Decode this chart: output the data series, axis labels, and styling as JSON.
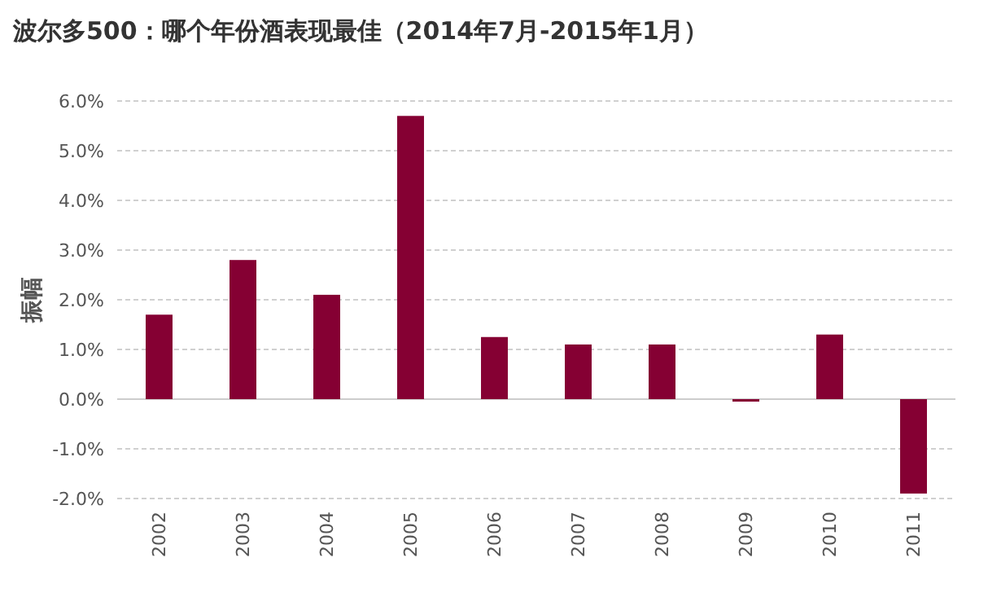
{
  "chart_data": {
    "type": "bar",
    "title": "波尔多500：哪个年份酒表现最佳（2014年7月-2015年1月）",
    "ylabel": "振幅",
    "categories": [
      "2002",
      "2003",
      "2004",
      "2005",
      "2006",
      "2007",
      "2008",
      "2009",
      "2010",
      "2011"
    ],
    "values": [
      1.7,
      2.8,
      2.1,
      5.7,
      1.25,
      1.1,
      1.1,
      -0.05,
      1.3,
      -1.9
    ],
    "color": "#850033",
    "ylim": [
      -2,
      6
    ],
    "yticks": [
      {
        "value": -2,
        "label": "-2.0%"
      },
      {
        "value": -1,
        "label": "-1.0%"
      },
      {
        "value": 0,
        "label": "0.0%"
      },
      {
        "value": 1,
        "label": "1.0%"
      },
      {
        "value": 2,
        "label": "2.0%"
      },
      {
        "value": 3,
        "label": "3.0%"
      },
      {
        "value": 4,
        "label": "4.0%"
      },
      {
        "value": 5,
        "label": "5.0%"
      },
      {
        "value": 6,
        "label": "6.0%"
      }
    ],
    "grid": "y"
  }
}
